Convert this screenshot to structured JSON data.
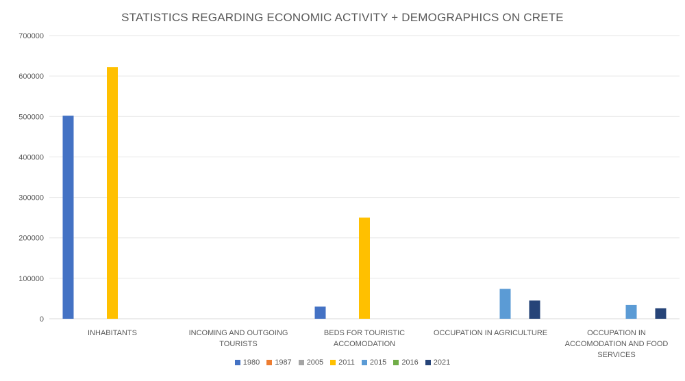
{
  "chart_data": {
    "type": "bar",
    "title": "STATISTICS REGARDING ECONOMIC ACTIVITY + DEMOGRAPHICS ON CRETE",
    "categories": [
      [
        "INHABITANTS"
      ],
      [
        "INCOMING AND OUTGOING",
        "TOURISTS"
      ],
      [
        "BEDS FOR TOURISTIC",
        "ACCOMODATION"
      ],
      [
        "OCCUPATION IN AGRICULTURE"
      ],
      [
        "OCCUPATION IN",
        "ACCOMODATION AND FOOD",
        "SERVICES"
      ]
    ],
    "y_ticks": [
      "0",
      "100000",
      "200000",
      "300000",
      "400000",
      "500000",
      "600000",
      "700000"
    ],
    "ylim": [
      0,
      700000
    ],
    "grid": true,
    "legend_position": "bottom",
    "series": [
      {
        "name": "1980",
        "color": "#4472C4",
        "values": [
          502000,
          null,
          30000,
          null,
          null
        ]
      },
      {
        "name": "1987",
        "color": "#ED7D31",
        "values": [
          null,
          null,
          null,
          null,
          null
        ]
      },
      {
        "name": "2005",
        "color": "#A5A5A5",
        "values": [
          null,
          null,
          null,
          null,
          null
        ]
      },
      {
        "name": "2011",
        "color": "#FFC000",
        "values": [
          622000,
          null,
          250000,
          null,
          null
        ]
      },
      {
        "name": "2015",
        "color": "#5B9BD5",
        "values": [
          null,
          null,
          null,
          74000,
          34000
        ]
      },
      {
        "name": "2016",
        "color": "#70AD47",
        "values": [
          null,
          null,
          null,
          null,
          null
        ]
      },
      {
        "name": "2021",
        "color": "#264478",
        "values": [
          null,
          null,
          null,
          45000,
          26000
        ]
      }
    ]
  }
}
